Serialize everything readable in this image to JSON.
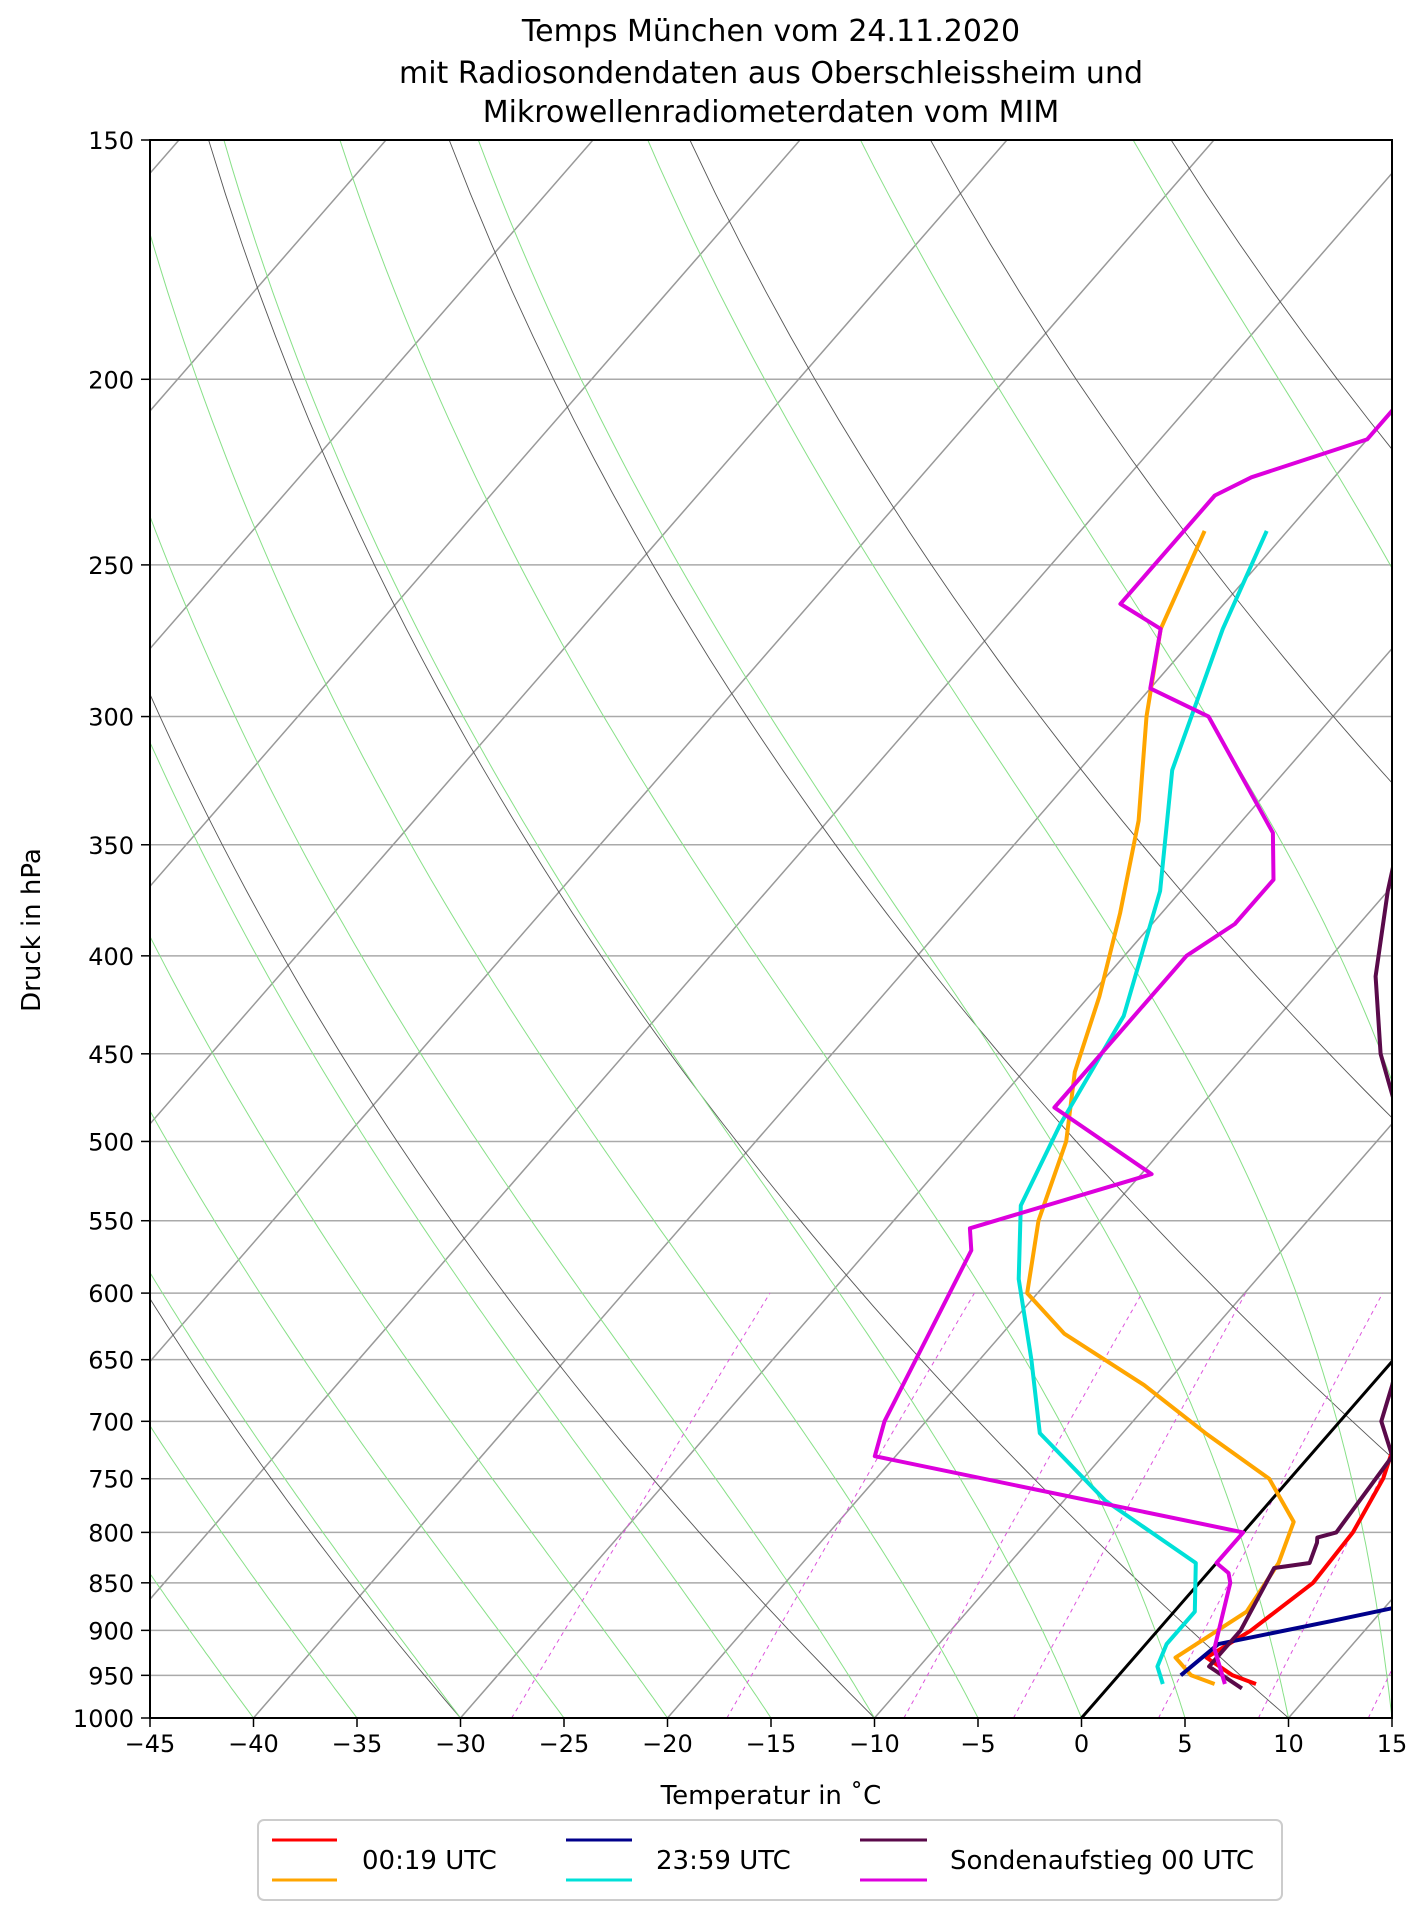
{
  "chart_data": {
    "type": "line",
    "title_lines": [
      "Temps München vom 24.11.2020",
      "mit Radiosondendaten aus Oberschleissheim und",
      "Mikrowellenradiometerdaten vom MIM"
    ],
    "xlabel": "Temperatur in ${}^\\circ$C",
    "xlabel_display": "Temperatur in ˚C",
    "ylabel": "Druck in hPa",
    "xlim": [
      -45,
      15
    ],
    "ylim": [
      1000,
      150
    ],
    "y_scale": "log",
    "skew": "skew-T (isotherms tilted)",
    "grid": true,
    "x_ticks": [
      "−45",
      "−40",
      "−35",
      "−30",
      "−25",
      "−20",
      "−15",
      "−10",
      "−5",
      "0",
      "5",
      "10",
      "15"
    ],
    "x_tick_values": [
      -45,
      -40,
      -35,
      -30,
      -25,
      -20,
      -15,
      -10,
      -5,
      0,
      5,
      10,
      15
    ],
    "y_ticks": [
      "150",
      "200",
      "250",
      "300",
      "350",
      "400",
      "450",
      "500",
      "550",
      "600",
      "650",
      "700",
      "750",
      "800",
      "850",
      "900",
      "950",
      "1000"
    ],
    "y_tick_values": [
      150,
      200,
      250,
      300,
      350,
      400,
      450,
      500,
      550,
      600,
      650,
      700,
      750,
      800,
      850,
      900,
      950,
      1000
    ],
    "legend": {
      "placement": "below plot",
      "entries": [
        {
          "label": "00:19 UTC",
          "colors": [
            "#ff0000",
            "#ffa500"
          ]
        },
        {
          "label": "23:59 UTC",
          "colors": [
            "#00008b",
            "#00e0d8"
          ]
        },
        {
          "label": "Sondenaufstieg 00 UTC",
          "colors": [
            "#5a0a4a",
            "#dd00dd"
          ]
        }
      ]
    },
    "series": [
      {
        "kind": "temperature",
        "color": "#ff0000",
        "points": [
          [
            -30.5,
            240
          ],
          [
            -30,
            255
          ],
          [
            -29,
            270
          ],
          [
            -27,
            290
          ],
          [
            -25,
            310
          ],
          [
            -22,
            340
          ],
          [
            -19,
            370
          ],
          [
            -16,
            400
          ],
          [
            -12.5,
            440
          ],
          [
            -10,
            475
          ],
          [
            -7,
            510
          ],
          [
            -4,
            550
          ],
          [
            -1,
            600
          ],
          [
            1,
            650
          ],
          [
            3,
            700
          ],
          [
            4.5,
            750
          ],
          [
            5.3,
            800
          ],
          [
            5.5,
            850
          ],
          [
            4.5,
            900
          ],
          [
            3.5,
            930
          ],
          [
            5.5,
            950
          ],
          [
            7,
            960
          ]
        ]
      },
      {
        "kind": "dewpoint",
        "color": "#ffa500",
        "points": [
          [
            -44,
            240
          ],
          [
            -42,
            270
          ],
          [
            -39,
            300
          ],
          [
            -35,
            340
          ],
          [
            -32,
            380
          ],
          [
            -29.5,
            420
          ],
          [
            -27.5,
            460
          ],
          [
            -25,
            500
          ],
          [
            -23,
            550
          ],
          [
            -20.5,
            600
          ],
          [
            -17,
            630
          ],
          [
            -11,
            670
          ],
          [
            -6,
            710
          ],
          [
            -1,
            750
          ],
          [
            2,
            790
          ],
          [
            3,
            830
          ],
          [
            3.5,
            880
          ],
          [
            2,
            930
          ],
          [
            3.5,
            950
          ],
          [
            5,
            960
          ]
        ]
      },
      {
        "kind": "temperature",
        "color": "#00008b",
        "points": [
          [
            -30.5,
            240
          ],
          [
            -29.5,
            255
          ],
          [
            -27.5,
            280
          ],
          [
            -24,
            320
          ],
          [
            -20,
            360
          ],
          [
            -16,
            400
          ],
          [
            -11,
            450
          ],
          [
            -6,
            510
          ],
          [
            -1,
            580
          ],
          [
            3,
            650
          ],
          [
            7,
            720
          ],
          [
            11,
            790
          ],
          [
            12,
            840
          ],
          [
            11.5,
            870
          ],
          [
            8,
            890
          ],
          [
            3.5,
            915
          ],
          [
            3,
            950
          ]
        ]
      },
      {
        "kind": "dewpoint",
        "color": "#00e0d8",
        "points": [
          [
            -41,
            240
          ],
          [
            -39,
            270
          ],
          [
            -35.5,
            320
          ],
          [
            -31,
            370
          ],
          [
            -27.5,
            430
          ],
          [
            -26,
            490
          ],
          [
            -24.5,
            540
          ],
          [
            -21.5,
            590
          ],
          [
            -17.5,
            650
          ],
          [
            -14,
            710
          ],
          [
            -8,
            770
          ],
          [
            -1,
            830
          ],
          [
            1,
            880
          ],
          [
            1,
            915
          ],
          [
            1.5,
            940
          ],
          [
            2.5,
            960
          ]
        ]
      },
      {
        "kind": "temperature",
        "color": "#5a0a4a",
        "points": [
          [
            -17,
            150
          ],
          [
            -17,
            165
          ],
          [
            -18.5,
            180
          ],
          [
            -27,
            215
          ],
          [
            -28,
            240
          ],
          [
            -28,
            250
          ],
          [
            -26,
            290
          ],
          [
            -25,
            300
          ],
          [
            -23,
            330
          ],
          [
            -20,
            370
          ],
          [
            -17,
            410
          ],
          [
            -13.5,
            450
          ],
          [
            -10.5,
            480
          ],
          [
            -9,
            500
          ],
          [
            -6.5,
            530
          ],
          [
            -3.5,
            570
          ],
          [
            -1,
            620
          ],
          [
            1,
            670
          ],
          [
            2,
            700
          ],
          [
            4,
            730
          ],
          [
            4.5,
            800
          ],
          [
            3.8,
            805
          ],
          [
            4,
            810
          ],
          [
            4.5,
            830
          ],
          [
            3,
            835
          ],
          [
            4,
            900
          ],
          [
            4,
            940
          ],
          [
            6.5,
            965
          ]
        ]
      },
      {
        "kind": "dewpoint",
        "color": "#dd00dd",
        "points": [
          [
            -40,
            200
          ],
          [
            -40,
            215
          ],
          [
            -44,
            225
          ],
          [
            -45,
            230
          ],
          [
            -45,
            262
          ],
          [
            -42,
            270
          ],
          [
            -40,
            290
          ],
          [
            -36,
            300
          ],
          [
            -28,
            345
          ],
          [
            -26,
            365
          ],
          [
            -26,
            385
          ],
          [
            -27,
            400
          ],
          [
            -27,
            410
          ],
          [
            -27,
            480
          ],
          [
            -19.5,
            520
          ],
          [
            -26,
            555
          ],
          [
            -25,
            570
          ],
          [
            -22,
            700
          ],
          [
            -21,
            730
          ],
          [
            0,
            800
          ],
          [
            0,
            830
          ],
          [
            1,
            840
          ],
          [
            1.5,
            850
          ],
          [
            3.5,
            920
          ],
          [
            5.5,
            960
          ]
        ]
      }
    ]
  }
}
